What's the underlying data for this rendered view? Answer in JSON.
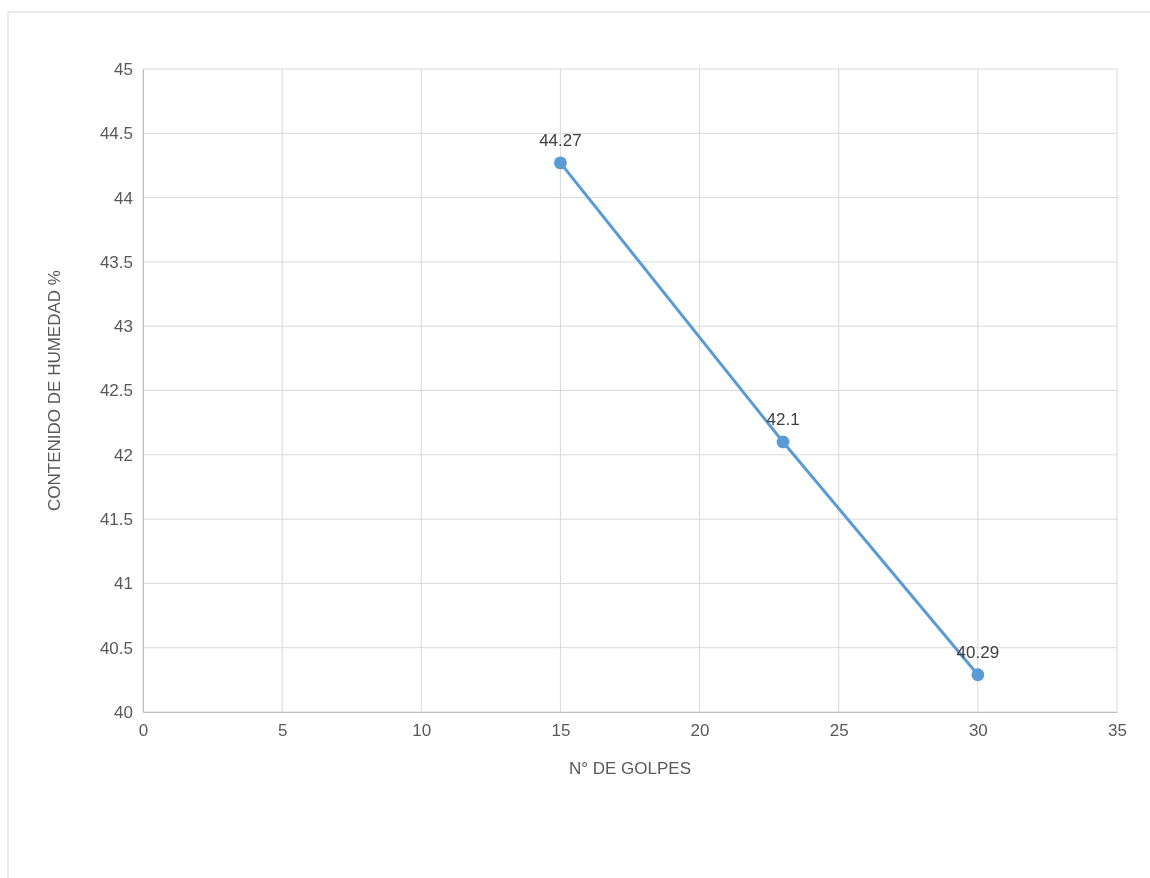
{
  "chart_data": {
    "type": "line",
    "xlabel": "N° DE GOLPES",
    "ylabel": "CONTENIDO DE HUMEDAD %",
    "x": [
      15,
      23,
      30
    ],
    "series": [
      {
        "color": "#5b9bd5",
        "values": [
          44.27,
          42.1,
          40.29
        ]
      }
    ],
    "xlim": [
      0,
      35
    ],
    "xticks": [
      0,
      5,
      10,
      15,
      20,
      25,
      30,
      35
    ],
    "ylim": [
      40,
      45
    ],
    "yticks": [
      40,
      40.5,
      41,
      41.5,
      42,
      42.5,
      43,
      43.5,
      44,
      44.5,
      45
    ],
    "grid": true,
    "marker": "circle",
    "line_style": "solid",
    "data_labels": true
  }
}
